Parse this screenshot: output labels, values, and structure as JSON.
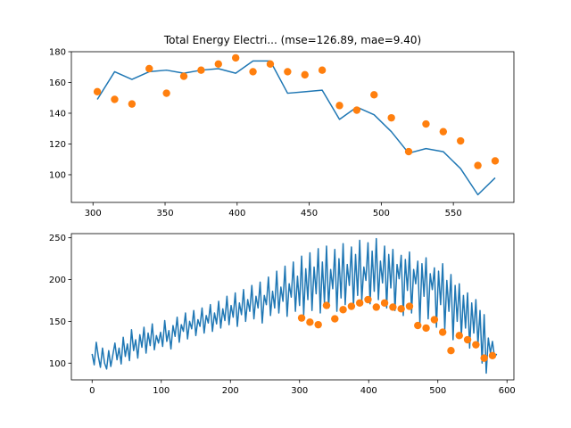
{
  "chart_data": [
    {
      "type": "line",
      "title": "Total Energy Electri... (mse=126.89, mae=9.40)",
      "xlabel": "",
      "ylabel": "",
      "xlim": [
        285,
        592
      ],
      "ylim": [
        82,
        180
      ],
      "xticks": [
        300,
        350,
        400,
        450,
        500,
        550
      ],
      "yticks": [
        100,
        120,
        140,
        160,
        180
      ],
      "series": [
        {
          "kind": "line",
          "color": "#1f77b4",
          "x": [
            303,
            315,
            327,
            339,
            351,
            363,
            375,
            387,
            399,
            411,
            423,
            435,
            447,
            459,
            471,
            483,
            495,
            507,
            519,
            531,
            543,
            555,
            567,
            579
          ],
          "y": [
            149,
            167,
            162,
            167,
            168,
            166,
            168,
            169,
            166,
            174,
            174,
            153,
            154,
            155,
            136,
            144,
            139,
            128,
            114,
            117,
            115,
            104,
            87,
            98
          ]
        },
        {
          "kind": "scatter",
          "color": "#ff7f0e",
          "x": [
            303,
            315,
            327,
            339,
            351,
            363,
            375,
            387,
            399,
            411,
            423,
            435,
            447,
            459,
            471,
            483,
            495,
            507,
            519,
            531,
            543,
            555,
            567,
            579
          ],
          "y": [
            154,
            149,
            146,
            169,
            153,
            164,
            168,
            172,
            176,
            167,
            172,
            167,
            165,
            168,
            145,
            142,
            152,
            137,
            115,
            133,
            128,
            122,
            106,
            109
          ]
        }
      ]
    },
    {
      "type": "line",
      "title": "",
      "xlabel": "",
      "ylabel": "",
      "xlim": [
        -30,
        610
      ],
      "ylim": [
        80,
        255
      ],
      "xticks": [
        0,
        100,
        200,
        300,
        400,
        500,
        600
      ],
      "yticks": [
        100,
        150,
        200,
        250
      ],
      "series": [
        {
          "kind": "line",
          "color": "#1f77b4",
          "x": [
            0,
            3,
            6,
            9,
            12,
            15,
            18,
            21,
            24,
            27,
            30,
            33,
            36,
            39,
            42,
            45,
            48,
            51,
            54,
            57,
            60,
            63,
            66,
            69,
            72,
            75,
            78,
            81,
            84,
            87,
            90,
            93,
            96,
            99,
            102,
            105,
            108,
            111,
            114,
            117,
            120,
            123,
            126,
            129,
            132,
            135,
            138,
            141,
            144,
            147,
            150,
            153,
            156,
            159,
            162,
            165,
            168,
            171,
            174,
            177,
            180,
            183,
            186,
            189,
            192,
            195,
            198,
            201,
            204,
            207,
            210,
            213,
            216,
            219,
            222,
            225,
            228,
            231,
            234,
            237,
            240,
            243,
            246,
            249,
            252,
            255,
            258,
            261,
            264,
            267,
            270,
            273,
            276,
            279,
            282,
            285,
            288,
            291,
            294,
            297,
            300,
            303,
            306,
            309,
            312,
            315,
            318,
            321,
            324,
            327,
            330,
            333,
            336,
            339,
            342,
            345,
            348,
            351,
            354,
            357,
            360,
            363,
            366,
            369,
            372,
            375,
            378,
            381,
            384,
            387,
            390,
            393,
            396,
            399,
            402,
            405,
            408,
            411,
            414,
            417,
            420,
            423,
            426,
            429,
            432,
            435,
            438,
            441,
            444,
            447,
            450,
            453,
            456,
            459,
            462,
            465,
            468,
            471,
            474,
            477,
            480,
            483,
            486,
            489,
            492,
            495,
            498,
            501,
            504,
            507,
            510,
            513,
            516,
            519,
            522,
            525,
            528,
            531,
            534,
            537,
            540,
            543,
            546,
            549,
            552,
            555,
            558,
            561,
            564,
            567,
            570,
            573,
            576,
            579,
            582,
            585
          ],
          "y": [
            111,
            98,
            125,
            108,
            95,
            118,
            100,
            93,
            115,
            96,
            110,
            124,
            104,
            118,
            99,
            131,
            108,
            123,
            103,
            140,
            115,
            128,
            106,
            134,
            119,
            143,
            112,
            136,
            121,
            147,
            116,
            133,
            124,
            137,
            120,
            151,
            126,
            139,
            117,
            145,
            132,
            155,
            125,
            146,
            138,
            160,
            129,
            150,
            141,
            163,
            133,
            152,
            144,
            166,
            136,
            157,
            148,
            170,
            138,
            160,
            147,
            174,
            142,
            165,
            151,
            180,
            146,
            169,
            155,
            184,
            144,
            172,
            158,
            188,
            150,
            176,
            162,
            193,
            153,
            180,
            166,
            197,
            148,
            181,
            170,
            203,
            157,
            186,
            166,
            210,
            160,
            191,
            174,
            216,
            156,
            195,
            179,
            221,
            162,
            204,
            169,
            228,
            158,
            213,
            176,
            232,
            163,
            215,
            183,
            237,
            160,
            221,
            172,
            240,
            166,
            212,
            189,
            236,
            162,
            225,
            178,
            243,
            170,
            218,
            193,
            239,
            168,
            230,
            181,
            247,
            175,
            215,
            199,
            244,
            171,
            234,
            186,
            249,
            176,
            222,
            196,
            240,
            166,
            230,
            190,
            236,
            163,
            218,
            201,
            229,
            157,
            224,
            187,
            233,
            160,
            212,
            195,
            222,
            148,
            219,
            180,
            226,
            153,
            207,
            188,
            214,
            143,
            210,
            170,
            219,
            140,
            199,
            162,
            206,
            128,
            193,
            150,
            195,
            133,
            181,
            142,
            184,
            118,
            172,
            136,
            176,
            122,
            163,
            100,
            158,
            88,
            130,
            112,
            126,
            107,
            111
          ]
        },
        {
          "kind": "scatter",
          "color": "#ff7f0e",
          "x": [
            303,
            315,
            327,
            339,
            351,
            363,
            375,
            387,
            399,
            411,
            423,
            435,
            447,
            459,
            471,
            483,
            495,
            507,
            519,
            531,
            543,
            555,
            567,
            579
          ],
          "y": [
            154,
            149,
            146,
            169,
            153,
            164,
            168,
            172,
            176,
            167,
            172,
            167,
            165,
            168,
            145,
            142,
            152,
            137,
            115,
            133,
            128,
            122,
            106,
            109
          ]
        }
      ]
    }
  ]
}
